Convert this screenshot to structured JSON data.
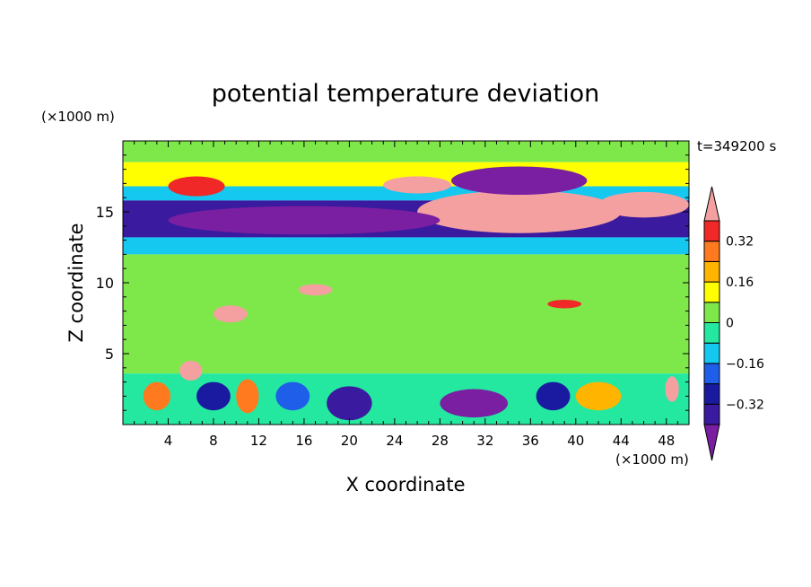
{
  "chart_data": {
    "type": "heatmap",
    "title": "potential temperature deviation",
    "xlabel": "X coordinate",
    "ylabel": "Z coordinate",
    "x_unit": "(×1000 m)",
    "y_unit": "(×1000 m)",
    "time_label": "t=349200 s",
    "xlim": [
      0,
      50
    ],
    "ylim": [
      0,
      20
    ],
    "x_ticks": [
      4,
      8,
      12,
      16,
      20,
      24,
      28,
      32,
      36,
      40,
      44,
      48
    ],
    "y_ticks": [
      5,
      10,
      15
    ],
    "colorbar": {
      "levels": [
        -0.4,
        -0.32,
        -0.24,
        -0.16,
        -0.08,
        0,
        0.08,
        0.16,
        0.24,
        0.32,
        0.4
      ],
      "tick_labels": [
        "0.32",
        "0.16",
        "0",
        "−0.16",
        "−0.32"
      ],
      "tick_values": [
        0.32,
        0.16,
        0,
        -0.16,
        -0.32
      ],
      "colors": [
        "#7a1fa2",
        "#3a1a9e",
        "#1a1aa0",
        "#1e5ee8",
        "#15c8f0",
        "#25e8a0",
        "#7ee84a",
        "#ffff00",
        "#ffb400",
        "#ff7a1e",
        "#f02828",
        "#f5a0a0"
      ],
      "extend": "both"
    },
    "bands": [
      {
        "z_min": 18.5,
        "z_max": 20,
        "value": 0.0
      },
      {
        "z_min": 16.8,
        "z_max": 18.5,
        "value": 0.12
      },
      {
        "z_min": 15.8,
        "z_max": 16.8,
        "value": -0.12
      },
      {
        "z_min": 13.2,
        "z_max": 15.8,
        "value": -0.34
      },
      {
        "z_min": 12,
        "z_max": 13.2,
        "value": -0.1
      },
      {
        "z_min": 3.6,
        "z_max": 12,
        "value": 0.04
      },
      {
        "z_min": 0,
        "z_max": 3.6,
        "value": -0.05
      }
    ],
    "features": [
      {
        "x": 35,
        "z": 15,
        "rx": 9,
        "rz": 1.5,
        "value": 0.42
      },
      {
        "x": 46,
        "z": 15.5,
        "rx": 4,
        "rz": 0.9,
        "value": 0.42
      },
      {
        "x": 35,
        "z": 17.2,
        "rx": 6,
        "rz": 1.0,
        "value": -0.42
      },
      {
        "x": 16,
        "z": 14.4,
        "rx": 12,
        "rz": 1.0,
        "value": -0.42
      },
      {
        "x": 6.5,
        "z": 16.8,
        "rx": 2.5,
        "rz": 0.7,
        "value": 0.36
      },
      {
        "x": 26,
        "z": 16.9,
        "rx": 3,
        "rz": 0.6,
        "value": 0.42
      },
      {
        "x": 17,
        "z": 9.5,
        "rx": 1.5,
        "rz": 0.4,
        "value": 0.42
      },
      {
        "x": 9.5,
        "z": 7.8,
        "rx": 1.5,
        "rz": 0.6,
        "value": 0.42
      },
      {
        "x": 39,
        "z": 8.5,
        "rx": 1.5,
        "rz": 0.3,
        "value": 0.36
      },
      {
        "x": 6,
        "z": 3.8,
        "rx": 1,
        "rz": 0.7,
        "value": 0.42
      },
      {
        "x": 48.5,
        "z": 2.5,
        "rx": 0.6,
        "rz": 0.9,
        "value": 0.42
      },
      {
        "x": 31,
        "z": 1.5,
        "rx": 3,
        "rz": 1.0,
        "value": -0.42
      },
      {
        "x": 20,
        "z": 1.5,
        "rx": 2,
        "rz": 1.2,
        "value": -0.36
      },
      {
        "x": 8,
        "z": 2,
        "rx": 1.5,
        "rz": 1.0,
        "value": -0.3
      },
      {
        "x": 38,
        "z": 2,
        "rx": 1.5,
        "rz": 1.0,
        "value": -0.3
      },
      {
        "x": 11,
        "z": 2,
        "rx": 1.0,
        "rz": 1.2,
        "value": 0.3
      },
      {
        "x": 3,
        "z": 2,
        "rx": 1.2,
        "rz": 1.0,
        "value": 0.25
      },
      {
        "x": 42,
        "z": 2,
        "rx": 2,
        "rz": 1.0,
        "value": 0.2
      },
      {
        "x": 15,
        "z": 2,
        "rx": 1.5,
        "rz": 1.0,
        "value": -0.2
      }
    ]
  }
}
